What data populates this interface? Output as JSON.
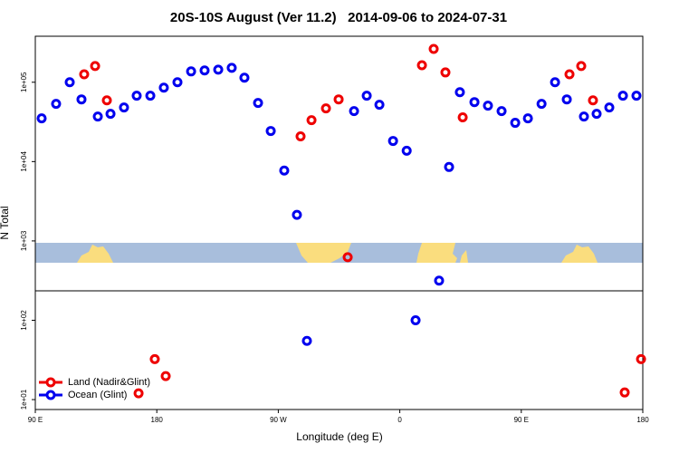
{
  "chart_data": {
    "type": "scatter",
    "title": "20S-10S August (Ver 11.2)   2014-09-06 to 2024-07-31",
    "x_label": "Longitude (deg E)",
    "y_label": "N Total",
    "xlim": [
      90,
      540
    ],
    "ylim": [
      7.5,
      380000
    ],
    "y_scale": "log",
    "legend": "bottomleft",
    "xticks": [
      {
        "value": 90,
        "label": "90 E"
      },
      180,
      {
        "value": 270,
        "label": "90 W"
      },
      {
        "value": 360,
        "label": "0"
      },
      {
        "value": 450,
        "label": "90 E"
      },
      {
        "value": 540,
        "label": "180"
      }
    ],
    "yticks": [
      {
        "value": 10,
        "label": "1e+01"
      },
      {
        "value": 100,
        "label": "1e+02"
      },
      {
        "value": 1000,
        "label": "1e+03"
      },
      {
        "value": 10000,
        "label": "1e+04"
      },
      {
        "value": 100000,
        "label": "1e+05"
      }
    ],
    "series": [
      {
        "name": "Land (Nadir&Glint)",
        "color": "#ee0000",
        "x": [
          126.2,
          134.3,
          143,
          166.5,
          178.5,
          186.6,
          286.5,
          294.6,
          305.3,
          314.7,
          321.4,
          376.4,
          385.1,
          393.8,
          406.6,
          485.7,
          494.4,
          503.1,
          526.6,
          538.7
        ],
        "values": [
          126000,
          160000,
          59200,
          12,
          32.4,
          19.8,
          20800,
          33300,
          46800,
          60800,
          624,
          164000,
          263000,
          133000,
          36100,
          126000,
          160000,
          59200,
          12.3,
          32.4
        ]
      },
      {
        "name": "Ocean (Glint)",
        "color": "#0000ee",
        "x": [
          94.7,
          105.4,
          115.5,
          124.2,
          136.3,
          145.7,
          155.7,
          165.1,
          175.2,
          185.2,
          195.3,
          205.4,
          215.4,
          225.5,
          235.5,
          244.9,
          255,
          264.4,
          274.4,
          283.8,
          291.2,
          326.1,
          335.5,
          344.9,
          355,
          365.1,
          371.7,
          389.1,
          396.5,
          404.5,
          415.3,
          425.3,
          435.4,
          445.5,
          454.9,
          465,
          475,
          483.7,
          496.4,
          505.8,
          515.2,
          525.3,
          535.3
        ],
        "values": [
          35100,
          53400,
          100000,
          60800,
          37000,
          40000,
          48100,
          67600,
          67600,
          85500,
          100000,
          137000,
          141000,
          144000,
          152000,
          114000,
          54800,
          24300,
          7700,
          2130,
          55,
          43300,
          67600,
          52000,
          18200,
          13700,
          100,
          316,
          8550,
          75000,
          56200,
          50700,
          43300,
          30800,
          35100,
          53400,
          100000,
          60800,
          37000,
          40000,
          48100,
          67600,
          67600
        ]
      }
    ]
  }
}
